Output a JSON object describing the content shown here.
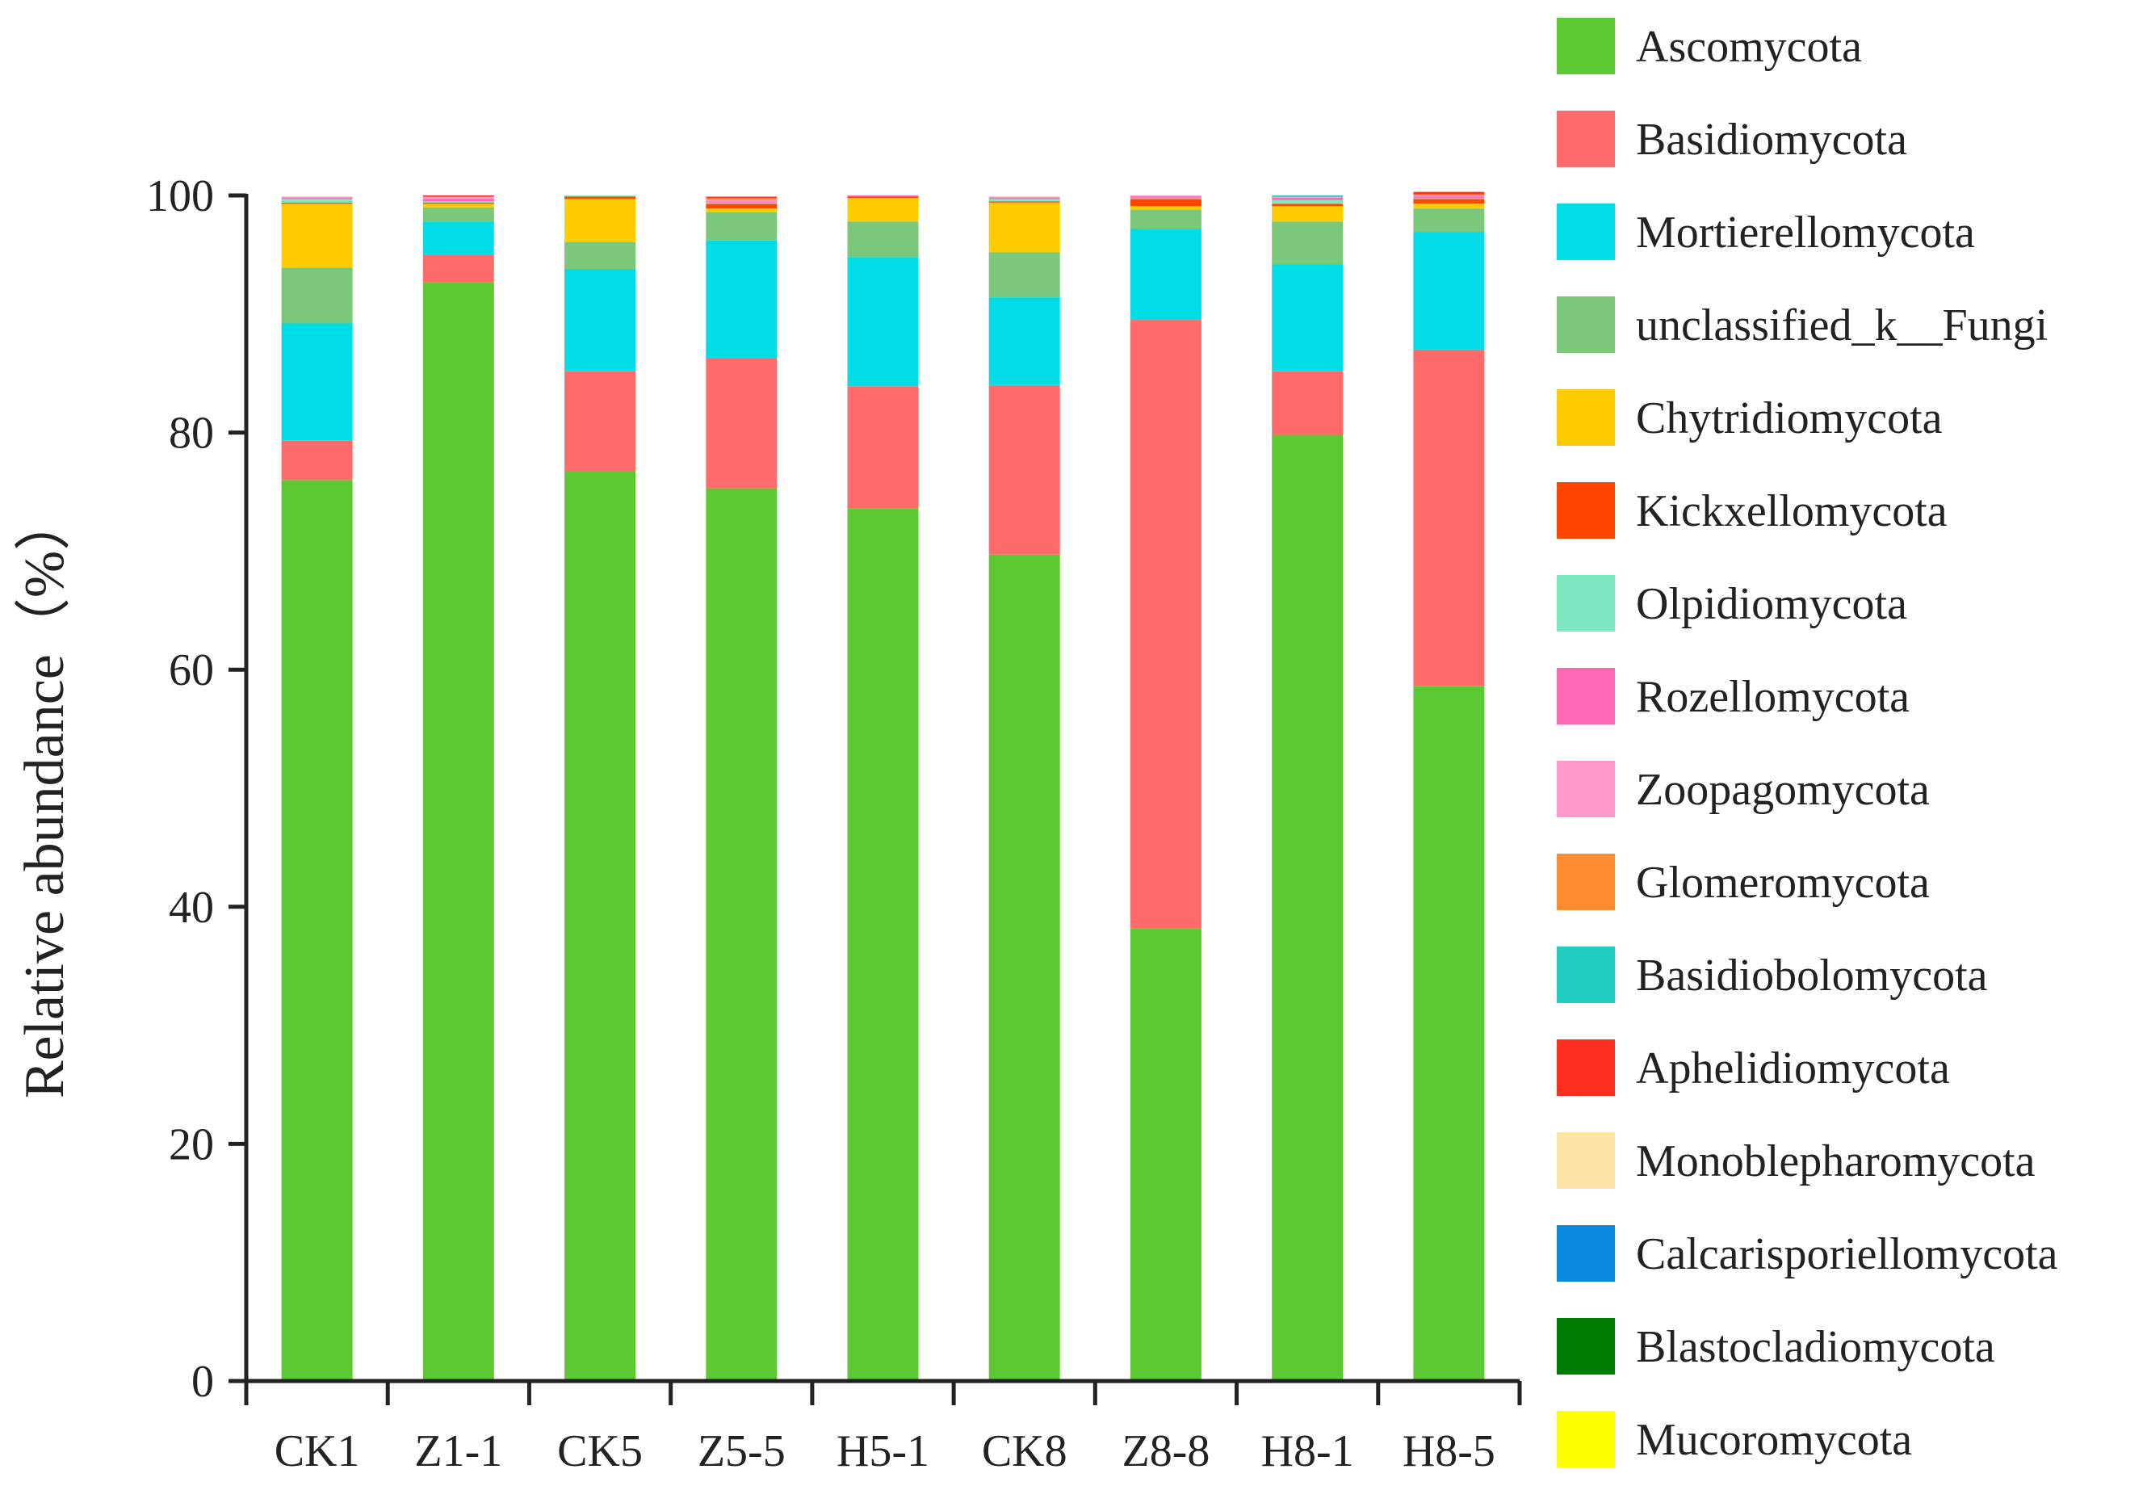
{
  "chart_data": {
    "type": "bar",
    "stacked": true,
    "title": "",
    "xlabel": "",
    "ylabel": "Relative abundance（%）",
    "ylim": [
      0,
      100
    ],
    "yticks": [
      "0",
      "20",
      "40",
      "60",
      "80",
      "100"
    ],
    "categories": [
      "CK1",
      "Z1-1",
      "CK5",
      "Z5-5",
      "H5-1",
      "CK8",
      "Z8-8",
      "H8-1",
      "H8-5"
    ],
    "legend_position": "right",
    "series": [
      {
        "name": "Ascomycota",
        "color": "#5DC932",
        "values": [
          76.0,
          92.7,
          76.7,
          75.3,
          73.6,
          69.7,
          38.2,
          79.8,
          58.6
        ]
      },
      {
        "name": "Basidiomycota",
        "color": "#FF6B6B",
        "values": [
          3.3,
          2.3,
          8.5,
          11.0,
          10.3,
          14.3,
          51.3,
          5.4,
          28.4
        ]
      },
      {
        "name": "Mortierellomycota",
        "color": "#00DDE6",
        "values": [
          9.9,
          2.8,
          8.6,
          9.9,
          10.9,
          7.4,
          7.7,
          9.0,
          9.9
        ]
      },
      {
        "name": "unclassified_k__Fungi",
        "color": "#7BC87A",
        "values": [
          4.7,
          1.2,
          2.3,
          2.4,
          3.0,
          3.8,
          1.6,
          3.6,
          2.0
        ]
      },
      {
        "name": "Chytridiomycota",
        "color": "#FFCC00",
        "values": [
          5.4,
          0.3,
          3.6,
          0.3,
          2.0,
          4.2,
          0.3,
          1.3,
          0.4
        ]
      },
      {
        "name": "Kickxellomycota",
        "color": "#FF4500",
        "values": [
          0.1,
          0.1,
          0.2,
          0.4,
          0.1,
          0.1,
          0.6,
          0.2,
          0.4
        ]
      },
      {
        "name": "Olpidiomycota",
        "color": "#7DE8C0",
        "values": [
          0.3,
          0.1,
          0.1,
          0.1,
          0.0,
          0.2,
          0.1,
          0.3,
          0.1
        ]
      },
      {
        "name": "Rozellomycota",
        "color": "#FF69B4",
        "values": [
          0.1,
          0.2,
          0.0,
          0.1,
          0.1,
          0.1,
          0.1,
          0.2,
          0.1
        ]
      },
      {
        "name": "Zoopagomycota",
        "color": "#FF99CC",
        "values": [
          0.1,
          0.2,
          0.0,
          0.1,
          0.0,
          0.1,
          0.1,
          0.1,
          0.1
        ]
      },
      {
        "name": "Glomeromycota",
        "color": "#FF8C2E",
        "values": [
          0.0,
          0.0,
          0.0,
          0.2,
          0.0,
          0.0,
          0.0,
          0.0,
          0.1
        ]
      },
      {
        "name": "Basidiobolomycota",
        "color": "#20CDC0",
        "values": [
          0.0,
          0.0,
          0.0,
          0.0,
          0.0,
          0.0,
          0.0,
          0.1,
          0.0
        ]
      },
      {
        "name": "Aphelidiomycota",
        "color": "#FF3020",
        "values": [
          0.0,
          0.1,
          0.0,
          0.1,
          0.0,
          0.0,
          0.0,
          0.0,
          0.2
        ]
      },
      {
        "name": "Monoblepharomycota",
        "color": "#FFE4A8",
        "values": [
          0.0,
          0.0,
          0.0,
          0.0,
          0.0,
          0.0,
          0.0,
          0.0,
          0.0
        ]
      },
      {
        "name": "Calcarisporiellomycota",
        "color": "#0A8BE0",
        "values": [
          0.0,
          0.0,
          0.0,
          0.0,
          0.0,
          0.0,
          0.0,
          0.0,
          0.0
        ]
      },
      {
        "name": "Blastocladiomycota",
        "color": "#007D00",
        "values": [
          0.0,
          0.0,
          0.0,
          0.0,
          0.0,
          0.0,
          0.0,
          0.0,
          0.0
        ]
      },
      {
        "name": "Mucoromycota",
        "color": "#FFFF00",
        "values": [
          0.0,
          0.0,
          0.0,
          0.0,
          0.0,
          0.0,
          0.0,
          0.0,
          0.0
        ]
      }
    ]
  }
}
